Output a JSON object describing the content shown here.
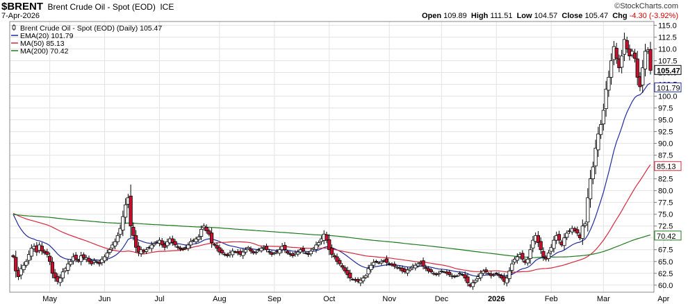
{
  "header": {
    "symbol": "$BRENT",
    "description": "Brent Crude Oil - Spot (EOD)",
    "exchange": "ICE",
    "date": "7-Apr-2026",
    "brand": "©StockCharts.com",
    "open_label": "Open",
    "open": "109.89",
    "high_label": "High",
    "high": "111.51",
    "low_label": "Low",
    "low": "104.57",
    "close_label": "Close",
    "close": "105.47",
    "chg_label": "Chg",
    "chg": "-4.30 (-3.92%)"
  },
  "legend": [
    {
      "text": "Brent Crude Oil - Spot (EOD) (Daily) 105.47",
      "color": "#000000",
      "marker": "candle"
    },
    {
      "text": "EMA(20) 101.79",
      "color": "#1f2aa0",
      "marker": "line"
    },
    {
      "text": "MA(50) 85.13",
      "color": "#d6263c",
      "marker": "line"
    },
    {
      "text": "MA(200) 70.42",
      "color": "#1b7a1b",
      "marker": "line"
    }
  ],
  "colors": {
    "up": "#ffffff",
    "down": "#c8102e",
    "candle_outline": "#000000",
    "ema20": "#1f2aa0",
    "ma50": "#d6263c",
    "ma200": "#1b7a1b",
    "grid": "#e3e3e3"
  },
  "chart_data": {
    "type": "candlestick",
    "ylim": [
      58.5,
      115.8
    ],
    "yticks": [
      60.0,
      62.5,
      65.0,
      67.5,
      70.0,
      72.5,
      75.0,
      77.5,
      80.0,
      82.5,
      85.0,
      87.5,
      90.0,
      92.5,
      95.0,
      97.5,
      100.0,
      102.5,
      105.0,
      107.5,
      110.0,
      112.5,
      115.0
    ],
    "xticks": [
      {
        "label": "May",
        "bar": 14,
        "bold": false
      },
      {
        "label": "Jun",
        "bar": 35,
        "bold": false
      },
      {
        "label": "Jul",
        "bar": 56,
        "bold": false
      },
      {
        "label": "Aug",
        "bar": 79,
        "bold": false
      },
      {
        "label": "Sep",
        "bar": 100,
        "bold": false
      },
      {
        "label": "Oct",
        "bar": 121,
        "bold": false
      },
      {
        "label": "Nov",
        "bar": 144,
        "bold": false
      },
      {
        "label": "Dec",
        "bar": 164,
        "bold": false
      },
      {
        "label": "2026",
        "bar": 185,
        "bold": true
      },
      {
        "label": "Feb",
        "bar": 206,
        "bold": false
      },
      {
        "label": "Mar",
        "bar": 226,
        "bold": false
      },
      {
        "label": "Apr",
        "bar": 249,
        "bold": false
      }
    ],
    "price_labels": [
      {
        "value": 105.47,
        "text": "105.47",
        "boxed": true,
        "bold": true
      },
      {
        "value": 101.79,
        "text": "101.79",
        "boxed": true,
        "bold": false
      },
      {
        "value": 85.13,
        "text": "85.13",
        "boxed": true,
        "bold": false
      },
      {
        "value": 70.42,
        "text": "70.42",
        "boxed": true,
        "bold": false
      }
    ],
    "close": [
      66.0,
      63.0,
      61.8,
      63.5,
      64.2,
      65.0,
      66.5,
      67.8,
      68.2,
      67.0,
      68.5,
      67.2,
      66.8,
      66.5,
      65.0,
      62.5,
      61.5,
      60.8,
      61.5,
      62.8,
      63.5,
      64.5,
      65.0,
      66.0,
      65.5,
      65.0,
      66.2,
      65.8,
      65.8,
      65.0,
      64.5,
      65.2,
      64.8,
      64.5,
      65.5,
      66.0,
      66.8,
      67.5,
      68.5,
      69.2,
      70.5,
      72.0,
      74.5,
      77.0,
      78.5,
      72.5,
      70.5,
      68.0,
      67.0,
      67.5,
      67.0,
      67.5,
      68.0,
      68.5,
      68.8,
      69.2,
      69.5,
      68.5,
      68.0,
      69.2,
      69.8,
      69.0,
      68.5,
      68.0,
      67.6,
      67.5,
      68.0,
      68.5,
      69.2,
      69.5,
      69.8,
      70.2,
      71.8,
      72.5,
      71.5,
      70.8,
      69.0,
      68.5,
      67.8,
      67.0,
      66.8,
      66.5,
      66.2,
      66.8,
      67.2,
      67.0,
      66.8,
      66.5,
      67.0,
      67.5,
      68.0,
      67.2,
      66.8,
      67.0,
      67.5,
      67.8,
      68.0,
      67.5,
      67.0,
      66.5,
      66.8,
      67.0,
      67.5,
      68.2,
      67.5,
      66.8,
      66.5,
      66.2,
      66.8,
      67.0,
      67.5,
      67.2,
      66.8,
      66.5,
      67.2,
      67.8,
      68.5,
      69.0,
      69.8,
      70.8,
      69.5,
      67.5,
      66.5,
      66.0,
      65.0,
      64.5,
      63.8,
      63.0,
      62.2,
      61.5,
      61.2,
      61.0,
      60.8,
      61.0,
      61.5,
      62.0,
      63.5,
      64.2,
      64.8,
      65.0,
      64.8,
      65.0,
      65.2,
      64.8,
      64.5,
      64.2,
      64.0,
      63.8,
      63.5,
      63.0,
      62.8,
      63.2,
      63.5,
      64.0,
      64.2,
      64.5,
      64.8,
      64.0,
      63.5,
      63.0,
      62.8,
      62.5,
      62.2,
      62.5,
      63.0,
      62.8,
      62.5,
      62.2,
      62.0,
      61.8,
      62.0,
      62.5,
      62.2,
      61.5,
      60.5,
      59.8,
      60.5,
      61.0,
      61.8,
      62.5,
      63.0,
      62.8,
      62.5,
      62.0,
      62.2,
      62.5,
      62.0,
      61.5,
      60.8,
      61.5,
      63.0,
      64.5,
      65.5,
      66.0,
      66.5,
      65.5,
      64.8,
      65.5,
      67.5,
      69.5,
      70.5,
      69.0,
      67.5,
      66.0,
      65.5,
      66.8,
      68.0,
      69.5,
      70.5,
      69.5,
      68.5,
      70.0,
      71.0,
      71.5,
      72.0,
      71.5,
      71.0,
      70.0,
      72.5,
      73.0,
      78.5,
      82.5,
      85.0,
      89.0,
      92.0,
      94.0,
      97.0,
      101.5,
      104.0,
      107.5,
      110.5,
      108.0,
      106.0,
      108.5,
      112.0,
      110.0,
      108.5,
      109.5,
      108.0,
      104.0,
      102.0,
      106.0,
      109.5,
      109.8,
      105.47
    ],
    "series": [
      {
        "name": "EMA(20)",
        "period": 20,
        "kind": "ema",
        "last": 101.79
      },
      {
        "name": "MA(50)",
        "period": 50,
        "kind": "sma",
        "last": 85.13
      },
      {
        "name": "MA(200)",
        "period": 200,
        "kind": "sma",
        "last": 70.42,
        "prior_level": 75.5
      }
    ]
  }
}
